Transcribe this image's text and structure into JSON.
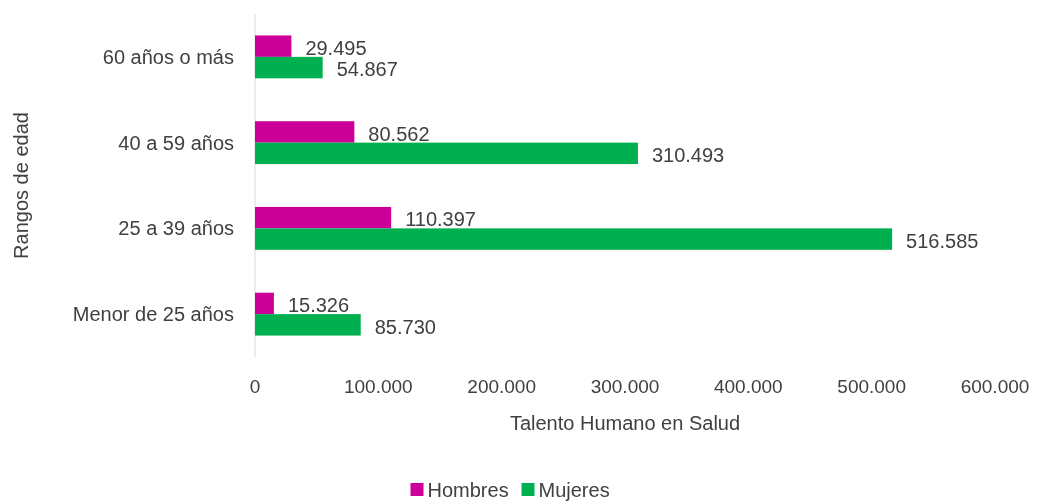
{
  "chart_data": {
    "type": "bar",
    "orientation": "horizontal",
    "xlabel": "Talento Humano en Salud",
    "ylabel": "Rangos de edad",
    "categories": [
      "60 años o más",
      "40 a 59 años",
      "25 a 39 años",
      "Menor de 25 años"
    ],
    "series": [
      {
        "name": "Hombres",
        "color": "#cc0099",
        "values": [
          29495,
          80562,
          110397,
          15326
        ],
        "value_labels": [
          "29.495",
          "80.562",
          "110.397",
          "15.326"
        ]
      },
      {
        "name": "Mujeres",
        "color": "#00b050",
        "values": [
          54867,
          310493,
          516585,
          85730
        ],
        "value_labels": [
          "54.867",
          "310.493",
          "516.585",
          "85.730"
        ]
      }
    ],
    "xlim": [
      0,
      600000
    ],
    "xticks": [
      0,
      {
        "value": 100000,
        "label": "100.000"
      },
      {
        "value": 200000,
        "label": "200.000"
      },
      {
        "value": 300000,
        "label": "300.000"
      },
      {
        "value": 400000,
        "label": "400.000"
      },
      {
        "value": 500000,
        "label": "500.000"
      },
      {
        "value": 600000,
        "label": "600.000"
      }
    ],
    "grid": false,
    "legend": "bottom"
  }
}
